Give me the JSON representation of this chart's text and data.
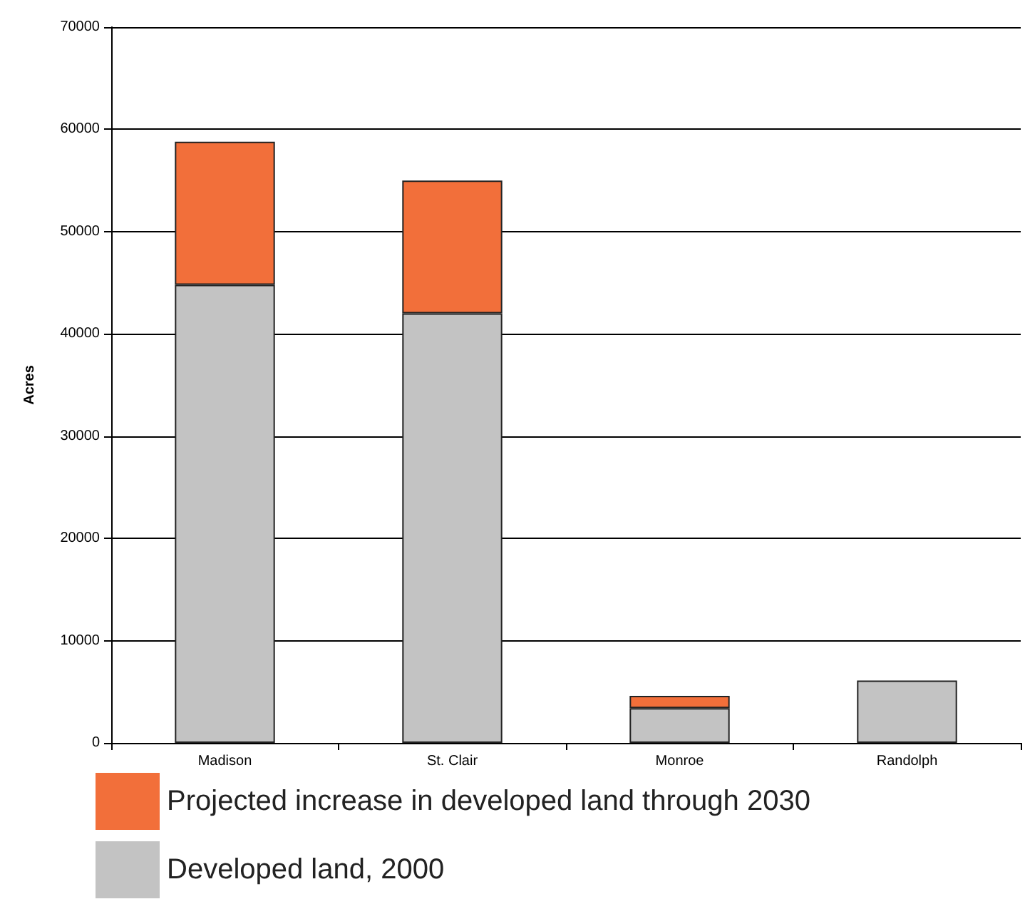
{
  "chart_data": {
    "type": "bar",
    "stacked": true,
    "ylabel": "Acres",
    "categories": [
      "Madison",
      "St. Clair",
      "Monroe",
      "Randolph"
    ],
    "series": [
      {
        "name": "Developed land, 2000",
        "color": "#c3c3c3",
        "values": [
          44800,
          42000,
          3400,
          6100
        ]
      },
      {
        "name": "Projected increase in developed land through 2030",
        "color": "#f26f3a",
        "values": [
          14000,
          13000,
          1200,
          null
        ]
      }
    ],
    "ylim": [
      0,
      70000
    ],
    "yticks": [
      0,
      10000,
      20000,
      30000,
      40000,
      50000,
      60000,
      70000
    ],
    "grid": "y",
    "legend": "bottom left"
  }
}
